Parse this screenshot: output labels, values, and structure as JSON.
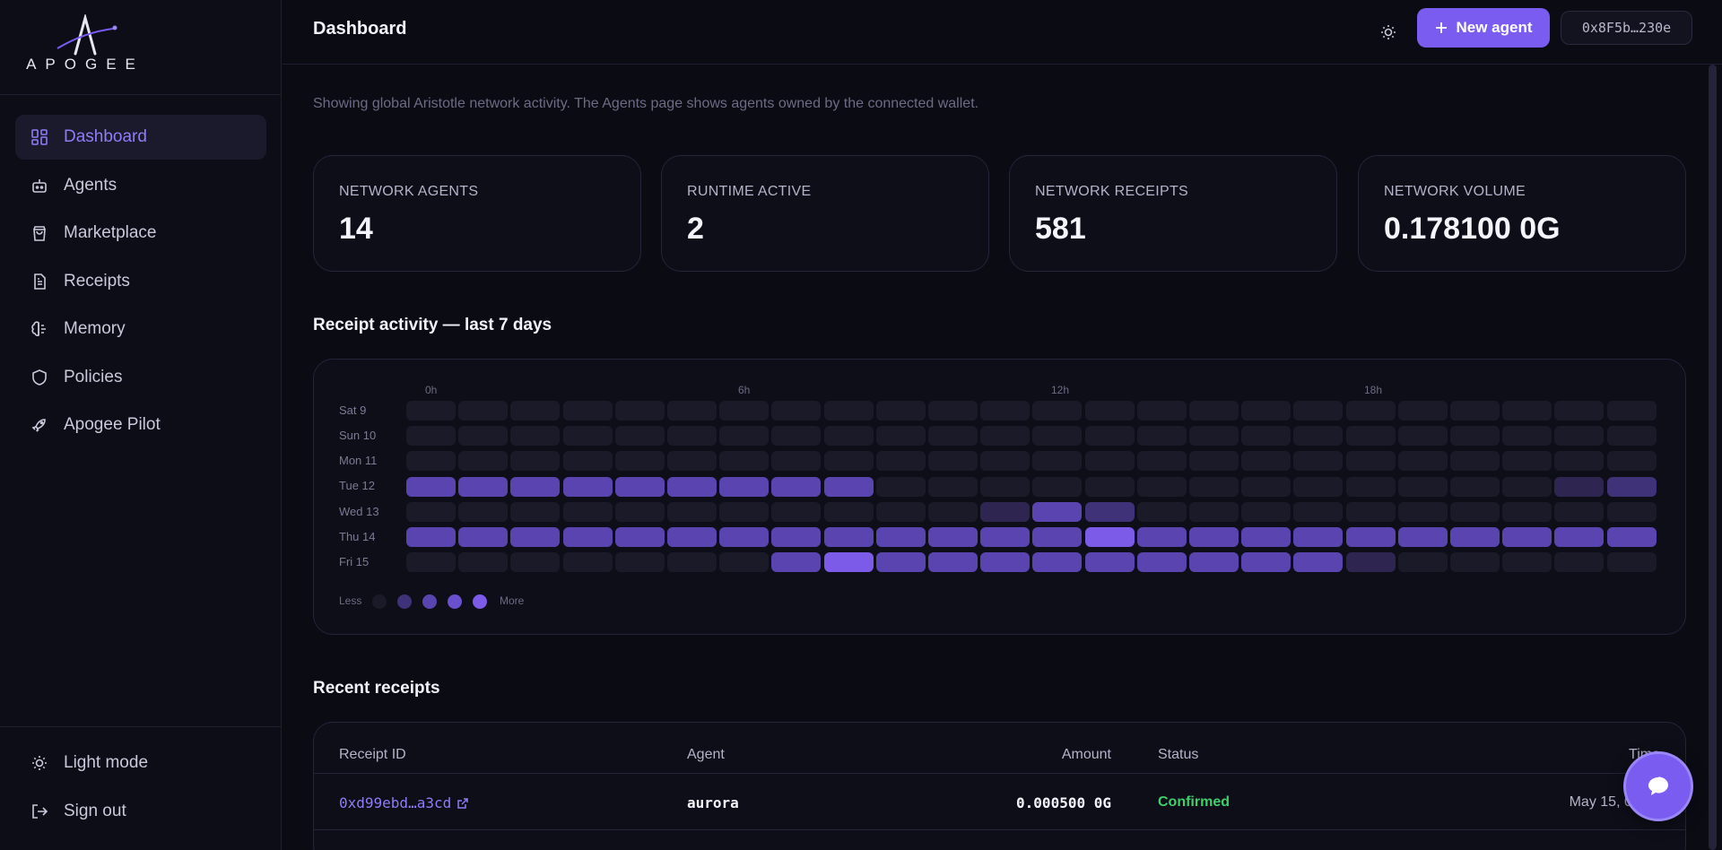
{
  "brand": {
    "name": "APOGEE"
  },
  "sidebar": {
    "items": [
      {
        "label": "Dashboard",
        "icon": "dashboard-icon",
        "active": true
      },
      {
        "label": "Agents",
        "icon": "bot-icon"
      },
      {
        "label": "Marketplace",
        "icon": "shopping-bag-icon"
      },
      {
        "label": "Receipts",
        "icon": "document-icon"
      },
      {
        "label": "Memory",
        "icon": "brain-icon"
      },
      {
        "label": "Policies",
        "icon": "shield-icon"
      },
      {
        "label": "Apogee Pilot",
        "icon": "rocket-icon"
      }
    ],
    "bottom": [
      {
        "label": "Light mode",
        "icon": "sun-icon"
      },
      {
        "label": "Sign out",
        "icon": "sign-out-icon"
      }
    ]
  },
  "header": {
    "title": "Dashboard",
    "new_agent_label": "New agent",
    "wallet": "0x8F5b…230e"
  },
  "notice": "Showing global Aristotle network activity. The Agents page shows agents owned by the connected wallet.",
  "stats": [
    {
      "label": "NETWORK AGENTS",
      "value": "14"
    },
    {
      "label": "RUNTIME ACTIVE",
      "value": "2"
    },
    {
      "label": "NETWORK RECEIPTS",
      "value": "581"
    },
    {
      "label": "NETWORK VOLUME",
      "value": "0.178100 0G"
    }
  ],
  "activity": {
    "title": "Receipt activity — last 7 days",
    "hour_labels": [
      "0h",
      "6h",
      "12h",
      "18h"
    ],
    "days": [
      "Sat 9",
      "Sun 10",
      "Mon 11",
      "Tue 12",
      "Wed 13",
      "Thu 14",
      "Fri 15"
    ],
    "levels": [
      [
        0,
        0,
        0,
        0,
        0,
        0,
        0,
        0,
        0,
        0,
        0,
        0,
        0,
        0,
        0,
        0,
        0,
        0,
        0,
        0,
        0,
        0,
        0,
        0
      ],
      [
        0,
        0,
        0,
        0,
        0,
        0,
        0,
        0,
        0,
        0,
        0,
        0,
        0,
        0,
        0,
        0,
        0,
        0,
        0,
        0,
        0,
        0,
        0,
        0
      ],
      [
        0,
        0,
        0,
        0,
        0,
        0,
        0,
        0,
        0,
        0,
        0,
        0,
        0,
        0,
        0,
        0,
        0,
        0,
        0,
        0,
        0,
        0,
        0,
        0
      ],
      [
        3,
        3,
        3,
        3,
        3,
        3,
        3,
        3,
        3,
        0,
        0,
        0,
        0,
        0,
        0,
        0,
        0,
        0,
        0,
        0,
        0,
        0,
        1,
        2
      ],
      [
        0,
        0,
        0,
        0,
        0,
        0,
        0,
        0,
        0,
        0,
        0,
        1,
        3,
        2,
        0,
        0,
        0,
        0,
        0,
        0,
        0,
        0,
        0,
        0
      ],
      [
        3,
        3,
        3,
        3,
        3,
        3,
        3,
        3,
        3,
        3,
        3,
        3,
        3,
        4,
        3,
        3,
        3,
        3,
        3,
        3,
        3,
        3,
        3,
        3
      ],
      [
        0,
        0,
        0,
        0,
        0,
        0,
        0,
        3,
        4,
        3,
        3,
        3,
        3,
        3,
        3,
        3,
        3,
        3,
        1,
        0,
        0,
        0,
        0,
        0
      ]
    ],
    "legend_less": "Less",
    "legend_more": "More",
    "legend_colors": [
      "#1a1a29",
      "#3f3278",
      "#5a45b0",
      "#6a50cf",
      "#7c5be8"
    ]
  },
  "recent": {
    "title": "Recent receipts",
    "columns": [
      "Receipt ID",
      "Agent",
      "Amount",
      "Status",
      "Time"
    ],
    "rows": [
      {
        "id": "0xd99ebd…a3cd",
        "agent": "aurora",
        "amount": "0.000500 0G",
        "status": "Confirmed",
        "time": "May 15, 01:20"
      }
    ]
  },
  "colors": {
    "accent": "#7a5cf0",
    "confirmed": "#3ecf6a",
    "link": "#8f7cf6"
  }
}
